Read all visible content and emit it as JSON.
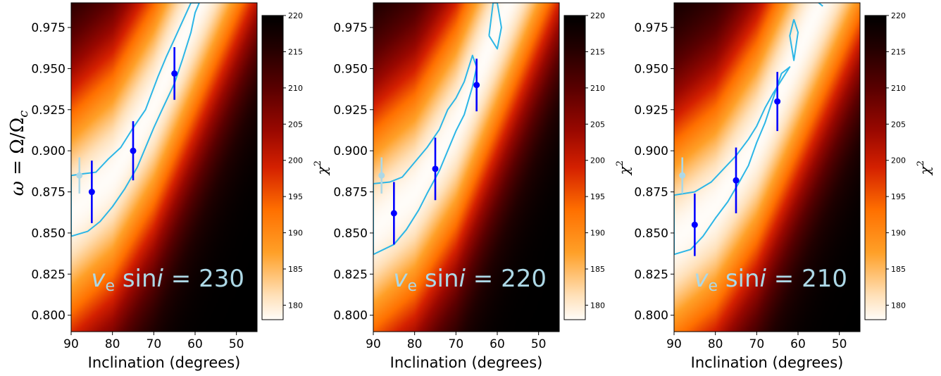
{
  "chart_data": [
    {
      "type": "heatmap",
      "annotation": {
        "var": "v",
        "sub": "e",
        "func": "sin",
        "italic": "i",
        "eq": " = ",
        "value": "230"
      },
      "xlabel": "Inclination (degrees)",
      "ylabel": {
        "symbol": "ω",
        "rest": " = Ω/Ω",
        "sub": "c"
      },
      "colorbar_label": {
        "base": "χ",
        "sup": "2"
      },
      "xlim": [
        90,
        45
      ],
      "ylim": [
        0.79,
        0.99
      ],
      "xticks": [
        "90",
        "80",
        "70",
        "60",
        "50"
      ],
      "yticks": [
        "0.800",
        "0.825",
        "0.850",
        "0.875",
        "0.900",
        "0.925",
        "0.950",
        "0.975"
      ],
      "colorbar": {
        "range": [
          178,
          220
        ],
        "ticks": [
          "180",
          "185",
          "190",
          "195",
          "200",
          "205",
          "210",
          "215",
          "220"
        ]
      },
      "ridge": [
        {
          "x": 90,
          "y": 0.862
        },
        {
          "x": 80,
          "y": 0.885
        },
        {
          "x": 70,
          "y": 0.928
        },
        {
          "x": 60,
          "y": 0.985
        }
      ],
      "contours": [
        [
          [
            90,
            0.848
          ],
          [
            86,
            0.851
          ],
          [
            83,
            0.857
          ],
          [
            80,
            0.866
          ],
          [
            77,
            0.877
          ],
          [
            74,
            0.89
          ],
          [
            72,
            0.902
          ],
          [
            70,
            0.914
          ],
          [
            68,
            0.925
          ],
          [
            65,
            0.941
          ],
          [
            63,
            0.956
          ],
          [
            61,
            0.972
          ],
          [
            60,
            0.984
          ],
          [
            59,
            0.99
          ],
          [
            61,
            0.99
          ],
          [
            63,
            0.979
          ],
          [
            65,
            0.968
          ],
          [
            67,
            0.957
          ],
          [
            69,
            0.945
          ],
          [
            72,
            0.925
          ],
          [
            75,
            0.914
          ],
          [
            78,
            0.902
          ],
          [
            81,
            0.895
          ],
          [
            84,
            0.887
          ],
          [
            87,
            0.886
          ],
          [
            90,
            0.885
          ],
          [
            90,
            0.848
          ]
        ]
      ],
      "points": [
        {
          "x": 88.0,
          "y": 0.885,
          "err": 0.011,
          "color": "#add8e6"
        },
        {
          "x": 85.0,
          "y": 0.875,
          "err": 0.019,
          "color": "#0000ff"
        },
        {
          "x": 75.0,
          "y": 0.9,
          "err": 0.018,
          "color": "#0000ff"
        },
        {
          "x": 65.0,
          "y": 0.947,
          "err": 0.016,
          "color": "#0000ff"
        }
      ]
    },
    {
      "type": "heatmap",
      "annotation": {
        "var": "v",
        "sub": "e",
        "func": "sin",
        "italic": "i",
        "eq": " = ",
        "value": "220"
      },
      "xlabel": "Inclination (degrees)",
      "colorbar_label": {
        "base": "χ",
        "sup": "2"
      },
      "xlim": [
        90,
        45
      ],
      "ylim": [
        0.79,
        0.99
      ],
      "xticks": [
        "90",
        "80",
        "70",
        "60",
        "50"
      ],
      "yticks": [
        "0.800",
        "0.825",
        "0.850",
        "0.875",
        "0.900",
        "0.925",
        "0.950",
        "0.975"
      ],
      "colorbar": {
        "range": [
          178,
          220
        ],
        "ticks": [
          "180",
          "185",
          "190",
          "195",
          "200",
          "205",
          "210",
          "215",
          "220"
        ]
      },
      "ridge": [
        {
          "x": 90,
          "y": 0.852
        },
        {
          "x": 80,
          "y": 0.874
        },
        {
          "x": 70,
          "y": 0.915
        },
        {
          "x": 60,
          "y": 0.975
        }
      ],
      "contours": [
        [
          [
            90,
            0.837
          ],
          [
            85,
            0.843
          ],
          [
            82,
            0.852
          ],
          [
            79,
            0.864
          ],
          [
            77,
            0.874
          ],
          [
            74,
            0.888
          ],
          [
            72,
            0.9
          ],
          [
            70,
            0.912
          ],
          [
            68,
            0.922
          ],
          [
            66,
            0.939
          ],
          [
            65,
            0.951
          ],
          [
            66,
            0.958
          ],
          [
            68,
            0.942
          ],
          [
            70,
            0.932
          ],
          [
            72,
            0.925
          ],
          [
            74,
            0.913
          ],
          [
            77,
            0.902
          ],
          [
            80,
            0.893
          ],
          [
            83,
            0.884
          ],
          [
            86,
            0.881
          ],
          [
            90,
            0.88
          ],
          [
            90,
            0.837
          ]
        ],
        [
          [
            62,
            0.97
          ],
          [
            61,
            0.99
          ],
          [
            60,
            0.99
          ],
          [
            59,
            0.975
          ],
          [
            60,
            0.962
          ],
          [
            62,
            0.97
          ]
        ]
      ],
      "points": [
        {
          "x": 88.0,
          "y": 0.885,
          "err": 0.011,
          "color": "#add8e6"
        },
        {
          "x": 85.0,
          "y": 0.862,
          "err": 0.019,
          "color": "#0000ff"
        },
        {
          "x": 75.0,
          "y": 0.889,
          "err": 0.019,
          "color": "#0000ff"
        },
        {
          "x": 65.0,
          "y": 0.94,
          "err": 0.016,
          "color": "#0000ff"
        }
      ]
    },
    {
      "type": "heatmap",
      "annotation": {
        "var": "v",
        "sub": "e",
        "func": "sin",
        "italic": "i",
        "eq": " = ",
        "value": "210"
      },
      "xlabel": "Inclination (degrees)",
      "colorbar_label": {
        "base": "χ",
        "sup": "2"
      },
      "xlim": [
        90,
        45
      ],
      "ylim": [
        0.79,
        0.99
      ],
      "xticks": [
        "90",
        "80",
        "70",
        "60",
        "50"
      ],
      "yticks": [
        "0.800",
        "0.825",
        "0.850",
        "0.875",
        "0.900",
        "0.925",
        "0.950",
        "0.975"
      ],
      "colorbar": {
        "range": [
          178,
          220
        ],
        "ticks": [
          "180",
          "185",
          "190",
          "195",
          "200",
          "205",
          "210",
          "215",
          "220"
        ]
      },
      "ridge": [
        {
          "x": 90,
          "y": 0.845
        },
        {
          "x": 80,
          "y": 0.866
        },
        {
          "x": 70,
          "y": 0.905
        },
        {
          "x": 60,
          "y": 0.96
        }
      ],
      "contours": [
        [
          [
            90,
            0.837
          ],
          [
            86,
            0.84
          ],
          [
            83,
            0.848
          ],
          [
            80,
            0.859
          ],
          [
            77,
            0.869
          ],
          [
            74,
            0.882
          ],
          [
            72,
            0.891
          ],
          [
            70,
            0.905
          ],
          [
            68,
            0.917
          ],
          [
            66,
            0.932
          ],
          [
            64,
            0.947
          ],
          [
            62,
            0.951
          ],
          [
            64,
            0.943
          ],
          [
            66,
            0.935
          ],
          [
            68,
            0.926
          ],
          [
            70,
            0.915
          ],
          [
            72,
            0.907
          ],
          [
            75,
            0.897
          ],
          [
            78,
            0.889
          ],
          [
            81,
            0.881
          ],
          [
            85,
            0.875
          ],
          [
            90,
            0.873
          ],
          [
            90,
            0.837
          ]
        ],
        [
          [
            61,
            0.98
          ],
          [
            60,
            0.972
          ],
          [
            61,
            0.955
          ],
          [
            62,
            0.97
          ],
          [
            61,
            0.98
          ]
        ],
        [
          [
            55,
            0.99
          ],
          [
            54,
            0.988
          ]
        ]
      ],
      "points": [
        {
          "x": 88.0,
          "y": 0.885,
          "err": 0.011,
          "color": "#add8e6"
        },
        {
          "x": 85.0,
          "y": 0.855,
          "err": 0.019,
          "color": "#0000ff"
        },
        {
          "x": 75.0,
          "y": 0.882,
          "err": 0.02,
          "color": "#0000ff"
        },
        {
          "x": 65.0,
          "y": 0.93,
          "err": 0.018,
          "color": "#0000ff"
        }
      ]
    }
  ]
}
